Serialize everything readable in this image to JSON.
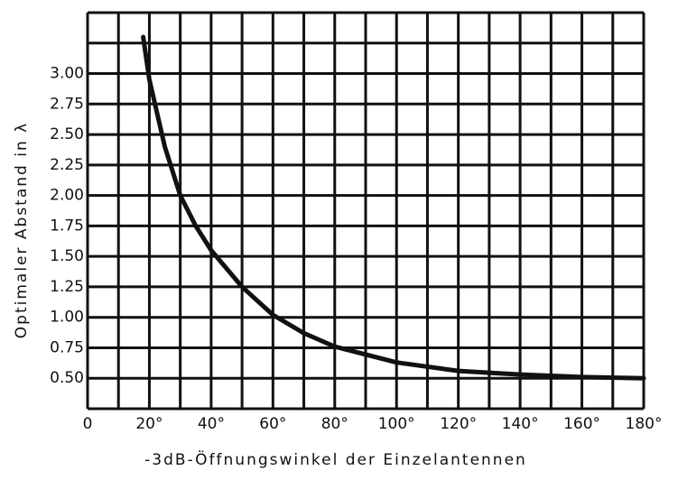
{
  "chart_data": {
    "type": "line",
    "xlabel": "-3dB-Öffnungswinkel der Einzelantennen",
    "ylabel": "Optimaler Abstand in λ",
    "x": [
      18,
      20,
      25,
      30,
      35,
      40,
      50,
      60,
      70,
      80,
      100,
      120,
      140,
      160,
      180
    ],
    "series": [
      {
        "color": "#111111",
        "values": [
          3.3,
          2.95,
          2.4,
          2.0,
          1.75,
          1.55,
          1.25,
          1.02,
          0.87,
          0.76,
          0.63,
          0.56,
          0.53,
          0.51,
          0.5
        ]
      }
    ],
    "xlim": [
      0,
      180
    ],
    "ylim": [
      0.25,
      3.5
    ],
    "xticks": [
      0,
      {
        "value": 20,
        "label": "20°"
      },
      {
        "value": 40,
        "label": "40°"
      },
      {
        "value": 60,
        "label": "60°"
      },
      {
        "value": 80,
        "label": "80°"
      },
      {
        "value": 100,
        "label": "100°"
      },
      {
        "value": 120,
        "label": "120°"
      },
      {
        "value": 140,
        "label": "140°"
      },
      {
        "value": 160,
        "label": "160°"
      },
      {
        "value": 180,
        "label": "180°"
      }
    ],
    "yticks": [
      {
        "value": 0.5,
        "label": "0.50"
      },
      {
        "value": 0.75,
        "label": "0.75"
      },
      {
        "value": 1,
        "label": "1.00"
      },
      {
        "value": 1.25,
        "label": "1.25"
      },
      {
        "value": 1.5,
        "label": "1.50"
      },
      {
        "value": 1.75,
        "label": "1.75"
      },
      {
        "value": 2,
        "label": "2.00"
      },
      {
        "value": 2.25,
        "label": "2.25"
      },
      {
        "value": 2.5,
        "label": "2.50"
      },
      {
        "value": 2.75,
        "label": "2.75"
      },
      {
        "value": 3,
        "label": "3.00"
      }
    ],
    "xgrid": [
      0,
      10,
      20,
      30,
      40,
      50,
      60,
      70,
      80,
      90,
      100,
      110,
      120,
      130,
      140,
      150,
      160,
      170,
      180
    ],
    "ygrid": [
      0.25,
      0.5,
      0.75,
      1,
      1.25,
      1.5,
      1.75,
      2,
      2.25,
      2.5,
      2.75,
      3,
      3.25,
      3.5
    ],
    "grid": true
  }
}
